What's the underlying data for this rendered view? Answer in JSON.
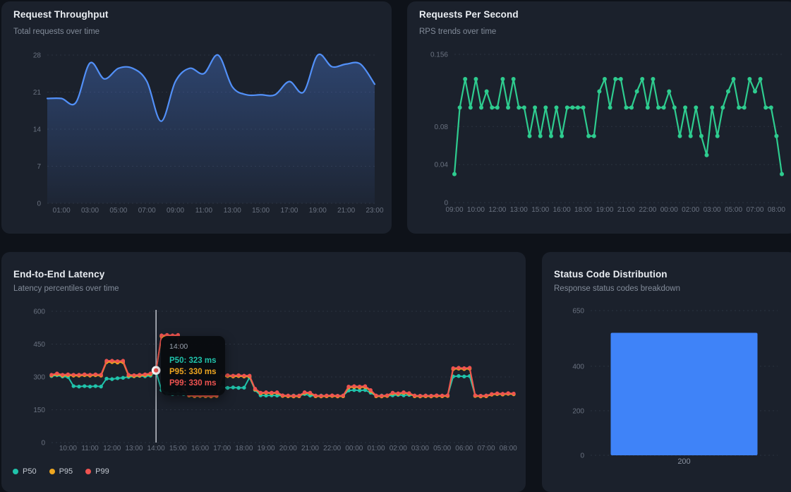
{
  "theme": {
    "page_bg": "#0e1219",
    "card_bg": "#1b212c",
    "title_color": "#e9edf2",
    "subtitle_color": "#828b99",
    "axis_color": "#6a7280",
    "grid_color": "#39414f",
    "blue": "#5290f8",
    "green": "#2ecc8f",
    "teal": "#20c3ab",
    "amber": "#eea620",
    "red": "#ef5350",
    "bar_blue": "#3f83f8",
    "crosshair": "#ccd1d9"
  },
  "cards": [
    {
      "id": "throughput",
      "title": "Request Throughput",
      "subtitle": "Total requests over time"
    },
    {
      "id": "rps",
      "title": "Requests Per Second",
      "subtitle": "RPS trends over time"
    },
    {
      "id": "latency",
      "title": "End-to-End Latency",
      "subtitle": "Latency percentiles over time"
    },
    {
      "id": "status",
      "title": "Status Code Distribution",
      "subtitle": "Response status codes breakdown"
    }
  ],
  "tooltip": {
    "time": "14:00",
    "rows": [
      {
        "series": "P50",
        "text": "P50: 323 ms"
      },
      {
        "series": "P95",
        "text": "P95: 330 ms"
      },
      {
        "series": "P99",
        "text": "P99: 330 ms"
      }
    ]
  },
  "chart_data": [
    {
      "id": "throughput",
      "type": "area",
      "title": "Request Throughput",
      "ylim": [
        0,
        28
      ],
      "yticks": [
        0,
        7,
        14,
        21,
        28
      ],
      "tick_labels": [
        "0",
        "7",
        "14",
        "21",
        "28"
      ],
      "grid": true,
      "legend_position": "none",
      "color": "#5290f8",
      "fill_color": "#4c7edb",
      "fill_opacity_top": 0.38,
      "fill_opacity_bottom": 0.05,
      "x_labels": [
        "01:00",
        "03:00",
        "05:00",
        "07:00",
        "09:00",
        "11:00",
        "13:00",
        "15:00",
        "17:00",
        "19:00",
        "21:00",
        "23:00"
      ],
      "label_indices": [
        1,
        3,
        5,
        7,
        9,
        11,
        13,
        15,
        17,
        19,
        21,
        23
      ],
      "x": [
        "00:00",
        "01:00",
        "02:00",
        "03:00",
        "04:00",
        "05:00",
        "06:00",
        "07:00",
        "08:00",
        "09:00",
        "10:00",
        "11:00",
        "12:00",
        "13:00",
        "14:00",
        "15:00",
        "16:00",
        "17:00",
        "18:00",
        "19:00",
        "20:00",
        "21:00",
        "22:00",
        "23:00"
      ],
      "values": [
        19.8,
        19.8,
        19,
        26.5,
        23.5,
        25.5,
        25.5,
        23,
        15.5,
        23,
        25.5,
        24.5,
        28,
        22,
        20.5,
        20.5,
        20.5,
        23,
        21,
        28,
        25.8,
        26.3,
        26.3,
        22.5
      ]
    },
    {
      "id": "rps",
      "type": "line",
      "title": "Requests Per Second",
      "ylim": [
        0,
        0.156
      ],
      "yticks": [
        0,
        0.04,
        0.08,
        0.156
      ],
      "tick_labels": [
        "0",
        "0.04",
        "0.08",
        "0.156"
      ],
      "grid": true,
      "legend_position": "none",
      "markers": true,
      "color": "#2ecc8f",
      "x_labels": [
        "09:00",
        "10:00",
        "12:00",
        "13:00",
        "15:00",
        "16:00",
        "18:00",
        "19:00",
        "21:00",
        "22:00",
        "00:00",
        "02:00",
        "03:00",
        "05:00",
        "07:00",
        "08:00"
      ],
      "label_indices": [
        0,
        4,
        8,
        12,
        16,
        20,
        24,
        28,
        32,
        36,
        40,
        44,
        48,
        52,
        56,
        60
      ],
      "values": [
        0.03,
        0.1,
        0.13,
        0.1,
        0.13,
        0.1,
        0.117,
        0.1,
        0.1,
        0.13,
        0.1,
        0.13,
        0.1,
        0.1,
        0.07,
        0.1,
        0.07,
        0.1,
        0.07,
        0.1,
        0.07,
        0.1,
        0.1,
        0.1,
        0.1,
        0.07,
        0.07,
        0.117,
        0.13,
        0.1,
        0.13,
        0.13,
        0.1,
        0.1,
        0.117,
        0.13,
        0.1,
        0.13,
        0.1,
        0.1,
        0.117,
        0.1,
        0.07,
        0.1,
        0.07,
        0.1,
        0.07,
        0.05,
        0.1,
        0.07,
        0.1,
        0.117,
        0.13,
        0.1,
        0.1,
        0.13,
        0.117,
        0.13,
        0.1,
        0.1,
        0.07,
        0.03
      ]
    },
    {
      "id": "latency",
      "type": "line",
      "title": "End-to-End Latency",
      "ylim": [
        0,
        600
      ],
      "yticks": [
        0,
        150,
        300,
        450,
        600
      ],
      "tick_labels": [
        "0",
        "150",
        "300",
        "450",
        "600"
      ],
      "grid": true,
      "markers": true,
      "legend_position": "bottom-left",
      "legend": [
        "P50",
        "P95",
        "P99"
      ],
      "x_labels": [
        "10:00",
        "11:00",
        "12:00",
        "13:00",
        "14:00",
        "15:00",
        "16:00",
        "17:00",
        "18:00",
        "19:00",
        "20:00",
        "21:00",
        "22:00",
        "00:00",
        "01:00",
        "02:00",
        "03:00",
        "05:00",
        "06:00",
        "07:00",
        "08:00"
      ],
      "label_indices": [
        3,
        7,
        11,
        15,
        19,
        23,
        27,
        31,
        35,
        39,
        43,
        47,
        51,
        55,
        59,
        63,
        67,
        71,
        75,
        79,
        83
      ],
      "crosshair_index": 19,
      "selected": {
        "x_label": "14:00",
        "P50": 323,
        "P95": 330,
        "P99": 330
      },
      "series": [
        {
          "name": "P50",
          "color": "#20c3ab",
          "values": [
            304,
            308,
            302,
            300,
            258,
            256,
            258,
            256,
            258,
            256,
            292,
            290,
            294,
            296,
            300,
            303,
            305,
            303,
            306,
            323,
            240,
            225,
            222,
            224,
            222,
            221,
            222,
            220,
            222,
            221,
            222,
            252,
            250,
            252,
            250,
            251,
            298,
            240,
            216,
            215,
            216,
            215,
            215,
            214,
            215,
            214,
            222,
            215,
            214,
            215,
            214,
            215,
            214,
            215,
            238,
            240,
            238,
            240,
            228,
            214,
            215,
            214,
            216,
            218,
            216,
            218,
            215,
            214,
            215,
            214,
            215,
            214,
            215,
            302,
            304,
            302,
            304,
            215,
            214,
            215,
            220,
            222,
            220,
            223,
            221
          ]
        },
        {
          "name": "P95",
          "color": "#eea620",
          "values": [
            307,
            312,
            306,
            308,
            306,
            306,
            308,
            306,
            308,
            306,
            368,
            368,
            366,
            368,
            306,
            304,
            306,
            308,
            312,
            330,
            485,
            487,
            485,
            487,
            246,
            215,
            212,
            213,
            212,
            211,
            213,
            302,
            304,
            302,
            304,
            302,
            302,
            243,
            225,
            227,
            225,
            227,
            213,
            212,
            211,
            212,
            227,
            225,
            212,
            211,
            212,
            213,
            211,
            212,
            252,
            254,
            252,
            254,
            236,
            212,
            211,
            213,
            225,
            222,
            227,
            223,
            212,
            211,
            212,
            211,
            213,
            212,
            213,
            336,
            338,
            336,
            338,
            213,
            211,
            212,
            219,
            222,
            220,
            223,
            221
          ]
        },
        {
          "name": "P99",
          "color": "#ef5350",
          "values": [
            310,
            316,
            310,
            312,
            310,
            310,
            312,
            310,
            312,
            310,
            374,
            374,
            372,
            374,
            310,
            308,
            310,
            312,
            316,
            330,
            490,
            492,
            490,
            492,
            250,
            218,
            215,
            216,
            215,
            214,
            216,
            306,
            308,
            306,
            308,
            306,
            306,
            246,
            228,
            230,
            228,
            230,
            216,
            215,
            214,
            215,
            230,
            228,
            215,
            214,
            215,
            216,
            214,
            215,
            256,
            258,
            256,
            258,
            240,
            215,
            214,
            216,
            228,
            225,
            230,
            226,
            215,
            214,
            215,
            214,
            216,
            215,
            216,
            340,
            342,
            340,
            342,
            216,
            214,
            215,
            222,
            225,
            223,
            226,
            224
          ]
        }
      ]
    },
    {
      "id": "status",
      "type": "bar",
      "title": "Status Code Distribution",
      "ylim": [
        0,
        650
      ],
      "yticks": [
        0,
        200,
        400,
        650
      ],
      "tick_labels": [
        "0",
        "200",
        "400",
        "650"
      ],
      "grid": true,
      "legend_position": "none",
      "color": "#3f83f8",
      "categories": [
        "200"
      ],
      "values": [
        550
      ]
    }
  ]
}
